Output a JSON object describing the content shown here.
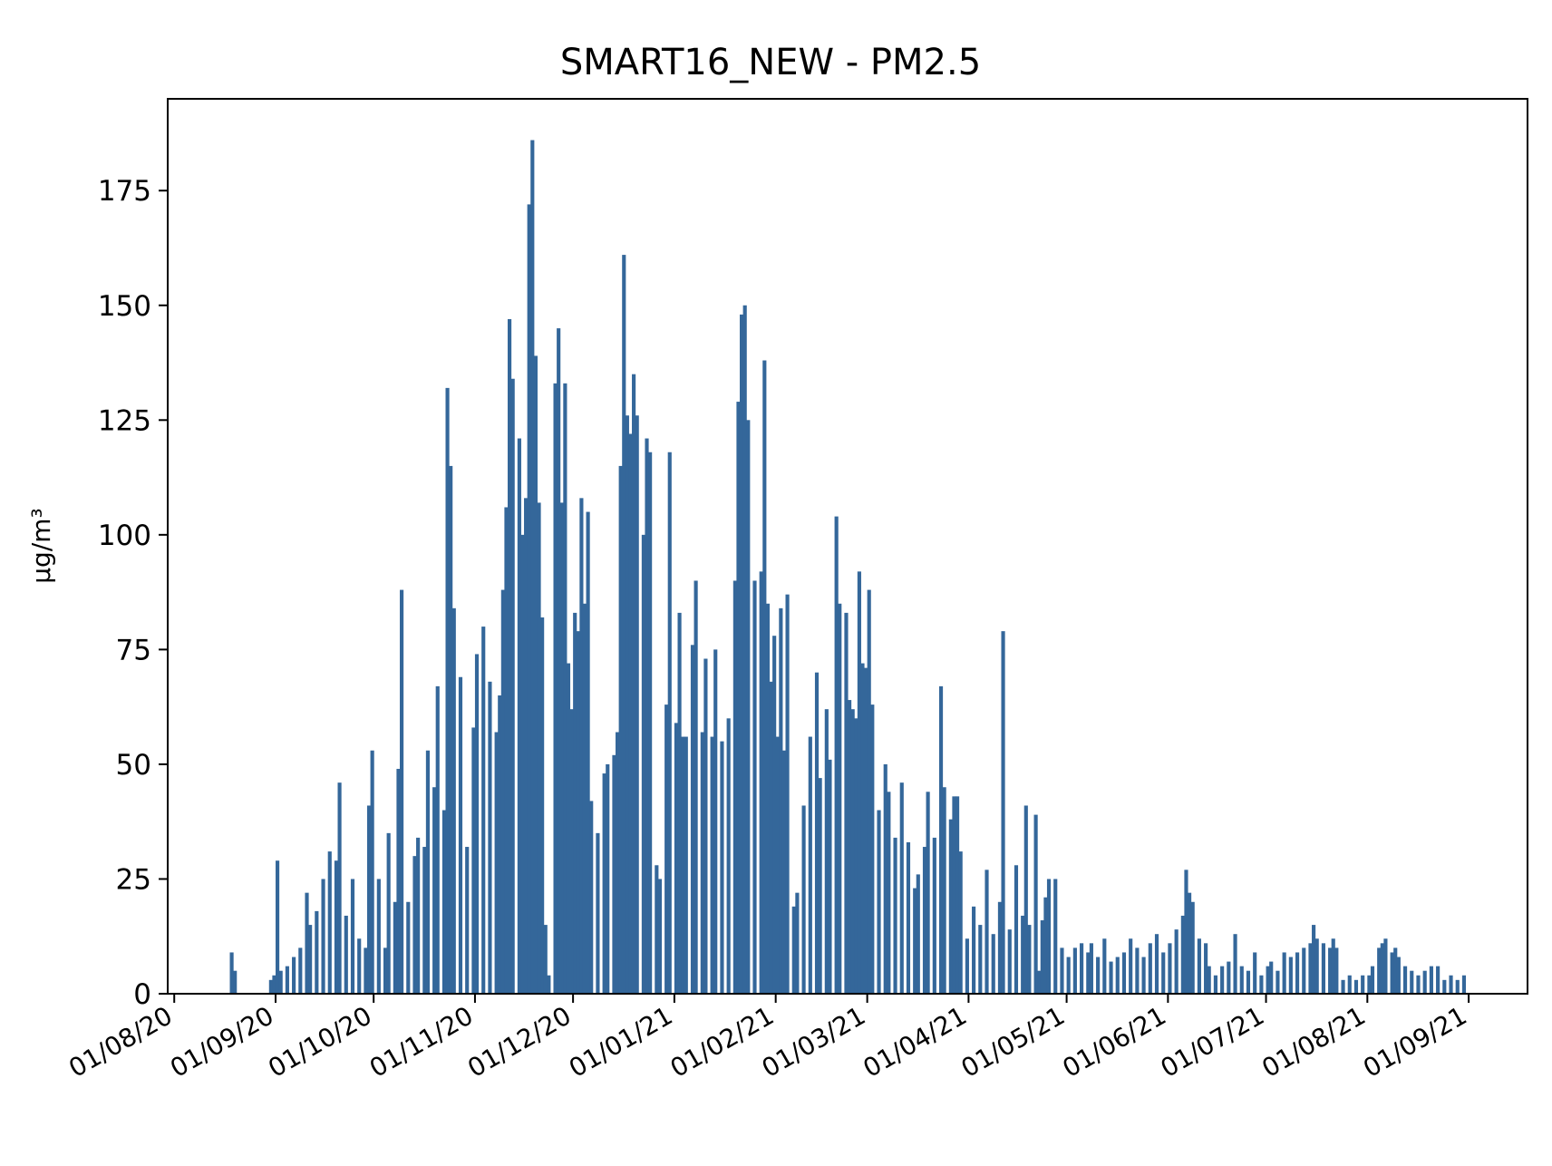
{
  "chart_data": {
    "type": "bar",
    "title": "SMART16_NEW - PM2.5",
    "ylabel": "µg/m³",
    "xlabel": "",
    "x_tick_labels": [
      "01/08/20",
      "01/09/20",
      "01/10/20",
      "01/11/20",
      "01/12/20",
      "01/01/21",
      "01/02/21",
      "01/03/21",
      "01/04/21",
      "01/05/21",
      "01/06/21",
      "01/07/21",
      "01/08/21",
      "01/09/21"
    ],
    "x_tick_dates": [
      "2020-08-01",
      "2020-09-01",
      "2020-10-01",
      "2020-11-01",
      "2020-12-01",
      "2021-01-01",
      "2021-02-01",
      "2021-03-01",
      "2021-04-01",
      "2021-05-01",
      "2021-06-01",
      "2021-07-01",
      "2021-08-01",
      "2021-09-01"
    ],
    "y_ticks": [
      0,
      25,
      50,
      75,
      100,
      125,
      150,
      175
    ],
    "y_tick_labels": [
      "0",
      "25",
      "50",
      "75",
      "100",
      "125",
      "150",
      "175"
    ],
    "xlim": [
      "2020-07-30",
      "2021-09-19"
    ],
    "ylim": [
      0,
      195
    ],
    "grid": false,
    "bar_color": "#34679a",
    "series": [
      {
        "values": [
          [
            "2020-08-18",
            9
          ],
          [
            "2020-08-19",
            5
          ],
          [
            "2020-08-30",
            3
          ],
          [
            "2020-08-31",
            4
          ],
          [
            "2020-09-01",
            29
          ],
          [
            "2020-09-02",
            5
          ],
          [
            "2020-09-04",
            6
          ],
          [
            "2020-09-06",
            8
          ],
          [
            "2020-09-08",
            10
          ],
          [
            "2020-09-10",
            22
          ],
          [
            "2020-09-11",
            15
          ],
          [
            "2020-09-13",
            18
          ],
          [
            "2020-09-15",
            25
          ],
          [
            "2020-09-17",
            31
          ],
          [
            "2020-09-19",
            29
          ],
          [
            "2020-09-20",
            46
          ],
          [
            "2020-09-22",
            17
          ],
          [
            "2020-09-24",
            25
          ],
          [
            "2020-09-26",
            12
          ],
          [
            "2020-09-28",
            10
          ],
          [
            "2020-09-29",
            41
          ],
          [
            "2020-09-30",
            53
          ],
          [
            "2020-10-02",
            25
          ],
          [
            "2020-10-04",
            10
          ],
          [
            "2020-10-05",
            35
          ],
          [
            "2020-10-07",
            20
          ],
          [
            "2020-10-08",
            49
          ],
          [
            "2020-10-09",
            88
          ],
          [
            "2020-10-11",
            20
          ],
          [
            "2020-10-13",
            30
          ],
          [
            "2020-10-14",
            34
          ],
          [
            "2020-10-16",
            32
          ],
          [
            "2020-10-17",
            53
          ],
          [
            "2020-10-19",
            45
          ],
          [
            "2020-10-20",
            67
          ],
          [
            "2020-10-22",
            40
          ],
          [
            "2020-10-23",
            132
          ],
          [
            "2020-10-24",
            115
          ],
          [
            "2020-10-25",
            84
          ],
          [
            "2020-10-27",
            69
          ],
          [
            "2020-10-29",
            32
          ],
          [
            "2020-10-31",
            58
          ],
          [
            "2020-11-01",
            74
          ],
          [
            "2020-11-03",
            80
          ],
          [
            "2020-11-05",
            68
          ],
          [
            "2020-11-07",
            57
          ],
          [
            "2020-11-08",
            65
          ],
          [
            "2020-11-09",
            88
          ],
          [
            "2020-11-10",
            106
          ],
          [
            "2020-11-11",
            147
          ],
          [
            "2020-11-12",
            134
          ],
          [
            "2020-11-14",
            121
          ],
          [
            "2020-11-15",
            100
          ],
          [
            "2020-11-16",
            108
          ],
          [
            "2020-11-17",
            172
          ],
          [
            "2020-11-18",
            186
          ],
          [
            "2020-11-19",
            139
          ],
          [
            "2020-11-20",
            107
          ],
          [
            "2020-11-21",
            82
          ],
          [
            "2020-11-22",
            15
          ],
          [
            "2020-11-23",
            4
          ],
          [
            "2020-11-25",
            133
          ],
          [
            "2020-11-26",
            145
          ],
          [
            "2020-11-27",
            107
          ],
          [
            "2020-11-28",
            133
          ],
          [
            "2020-11-29",
            72
          ],
          [
            "2020-11-30",
            62
          ],
          [
            "2020-12-01",
            83
          ],
          [
            "2020-12-02",
            79
          ],
          [
            "2020-12-03",
            108
          ],
          [
            "2020-12-04",
            85
          ],
          [
            "2020-12-05",
            105
          ],
          [
            "2020-12-06",
            42
          ],
          [
            "2020-12-08",
            35
          ],
          [
            "2020-12-10",
            48
          ],
          [
            "2020-12-11",
            50
          ],
          [
            "2020-12-13",
            52
          ],
          [
            "2020-12-14",
            57
          ],
          [
            "2020-12-15",
            115
          ],
          [
            "2020-12-16",
            161
          ],
          [
            "2020-12-17",
            126
          ],
          [
            "2020-12-18",
            122
          ],
          [
            "2020-12-19",
            135
          ],
          [
            "2020-12-20",
            126
          ],
          [
            "2020-12-22",
            100
          ],
          [
            "2020-12-23",
            121
          ],
          [
            "2020-12-24",
            118
          ],
          [
            "2020-12-26",
            28
          ],
          [
            "2020-12-27",
            25
          ],
          [
            "2020-12-29",
            63
          ],
          [
            "2020-12-30",
            118
          ],
          [
            "2021-01-01",
            59
          ],
          [
            "2021-01-02",
            83
          ],
          [
            "2021-01-03",
            56
          ],
          [
            "2021-01-04",
            56
          ],
          [
            "2021-01-06",
            76
          ],
          [
            "2021-01-07",
            90
          ],
          [
            "2021-01-09",
            57
          ],
          [
            "2021-01-10",
            73
          ],
          [
            "2021-01-12",
            56
          ],
          [
            "2021-01-13",
            75
          ],
          [
            "2021-01-15",
            55
          ],
          [
            "2021-01-17",
            60
          ],
          [
            "2021-01-19",
            90
          ],
          [
            "2021-01-20",
            129
          ],
          [
            "2021-01-21",
            148
          ],
          [
            "2021-01-22",
            150
          ],
          [
            "2021-01-23",
            125
          ],
          [
            "2021-01-25",
            90
          ],
          [
            "2021-01-27",
            92
          ],
          [
            "2021-01-28",
            138
          ],
          [
            "2021-01-29",
            85
          ],
          [
            "2021-01-30",
            68
          ],
          [
            "2021-01-31",
            78
          ],
          [
            "2021-02-01",
            56
          ],
          [
            "2021-02-02",
            84
          ],
          [
            "2021-02-03",
            53
          ],
          [
            "2021-02-04",
            87
          ],
          [
            "2021-02-06",
            19
          ],
          [
            "2021-02-07",
            22
          ],
          [
            "2021-02-09",
            41
          ],
          [
            "2021-02-11",
            56
          ],
          [
            "2021-02-13",
            70
          ],
          [
            "2021-02-14",
            47
          ],
          [
            "2021-02-16",
            62
          ],
          [
            "2021-02-17",
            51
          ],
          [
            "2021-02-19",
            104
          ],
          [
            "2021-02-20",
            85
          ],
          [
            "2021-02-22",
            83
          ],
          [
            "2021-02-23",
            64
          ],
          [
            "2021-02-24",
            62
          ],
          [
            "2021-02-25",
            60
          ],
          [
            "2021-02-26",
            92
          ],
          [
            "2021-02-27",
            72
          ],
          [
            "2021-02-28",
            71
          ],
          [
            "2021-03-01",
            88
          ],
          [
            "2021-03-02",
            63
          ],
          [
            "2021-03-04",
            40
          ],
          [
            "2021-03-06",
            50
          ],
          [
            "2021-03-07",
            44
          ],
          [
            "2021-03-09",
            34
          ],
          [
            "2021-03-11",
            46
          ],
          [
            "2021-03-13",
            33
          ],
          [
            "2021-03-15",
            23
          ],
          [
            "2021-03-16",
            26
          ],
          [
            "2021-03-18",
            32
          ],
          [
            "2021-03-19",
            44
          ],
          [
            "2021-03-21",
            34
          ],
          [
            "2021-03-23",
            67
          ],
          [
            "2021-03-24",
            45
          ],
          [
            "2021-03-26",
            38
          ],
          [
            "2021-03-27",
            43
          ],
          [
            "2021-03-28",
            43
          ],
          [
            "2021-03-29",
            31
          ],
          [
            "2021-03-31",
            12
          ],
          [
            "2021-04-02",
            19
          ],
          [
            "2021-04-04",
            15
          ],
          [
            "2021-04-06",
            27
          ],
          [
            "2021-04-08",
            13
          ],
          [
            "2021-04-10",
            20
          ],
          [
            "2021-04-11",
            79
          ],
          [
            "2021-04-13",
            14
          ],
          [
            "2021-04-15",
            28
          ],
          [
            "2021-04-17",
            17
          ],
          [
            "2021-04-18",
            41
          ],
          [
            "2021-04-19",
            15
          ],
          [
            "2021-04-21",
            39
          ],
          [
            "2021-04-22",
            5
          ],
          [
            "2021-04-23",
            16
          ],
          [
            "2021-04-24",
            21
          ],
          [
            "2021-04-25",
            25
          ],
          [
            "2021-04-27",
            25
          ],
          [
            "2021-04-29",
            10
          ],
          [
            "2021-05-01",
            8
          ],
          [
            "2021-05-03",
            10
          ],
          [
            "2021-05-05",
            11
          ],
          [
            "2021-05-07",
            9
          ],
          [
            "2021-05-08",
            11
          ],
          [
            "2021-05-10",
            8
          ],
          [
            "2021-05-12",
            12
          ],
          [
            "2021-05-14",
            7
          ],
          [
            "2021-05-16",
            8
          ],
          [
            "2021-05-18",
            9
          ],
          [
            "2021-05-20",
            12
          ],
          [
            "2021-05-22",
            10
          ],
          [
            "2021-05-24",
            8
          ],
          [
            "2021-05-26",
            11
          ],
          [
            "2021-05-28",
            13
          ],
          [
            "2021-05-30",
            9
          ],
          [
            "2021-06-01",
            11
          ],
          [
            "2021-06-03",
            14
          ],
          [
            "2021-06-05",
            17
          ],
          [
            "2021-06-06",
            27
          ],
          [
            "2021-06-07",
            22
          ],
          [
            "2021-06-08",
            20
          ],
          [
            "2021-06-10",
            12
          ],
          [
            "2021-06-12",
            11
          ],
          [
            "2021-06-13",
            6
          ],
          [
            "2021-06-15",
            4
          ],
          [
            "2021-06-17",
            6
          ],
          [
            "2021-06-19",
            7
          ],
          [
            "2021-06-21",
            13
          ],
          [
            "2021-06-23",
            6
          ],
          [
            "2021-06-25",
            5
          ],
          [
            "2021-06-27",
            9
          ],
          [
            "2021-06-29",
            4
          ],
          [
            "2021-07-01",
            6
          ],
          [
            "2021-07-02",
            7
          ],
          [
            "2021-07-04",
            5
          ],
          [
            "2021-07-06",
            9
          ],
          [
            "2021-07-08",
            8
          ],
          [
            "2021-07-10",
            9
          ],
          [
            "2021-07-12",
            10
          ],
          [
            "2021-07-14",
            11
          ],
          [
            "2021-07-15",
            15
          ],
          [
            "2021-07-16",
            12
          ],
          [
            "2021-07-18",
            11
          ],
          [
            "2021-07-20",
            10
          ],
          [
            "2021-07-21",
            12
          ],
          [
            "2021-07-22",
            10
          ],
          [
            "2021-07-24",
            3
          ],
          [
            "2021-07-26",
            4
          ],
          [
            "2021-07-28",
            3
          ],
          [
            "2021-07-30",
            4
          ],
          [
            "2021-08-01",
            4
          ],
          [
            "2021-08-02",
            6
          ],
          [
            "2021-08-04",
            10
          ],
          [
            "2021-08-05",
            11
          ],
          [
            "2021-08-06",
            12
          ],
          [
            "2021-08-08",
            9
          ],
          [
            "2021-08-09",
            10
          ],
          [
            "2021-08-10",
            8
          ],
          [
            "2021-08-12",
            6
          ],
          [
            "2021-08-14",
            5
          ],
          [
            "2021-08-16",
            4
          ],
          [
            "2021-08-18",
            5
          ],
          [
            "2021-08-20",
            6
          ],
          [
            "2021-08-22",
            6
          ],
          [
            "2021-08-24",
            3
          ],
          [
            "2021-08-26",
            4
          ],
          [
            "2021-08-28",
            3
          ],
          [
            "2021-08-30",
            4
          ]
        ]
      }
    ]
  }
}
